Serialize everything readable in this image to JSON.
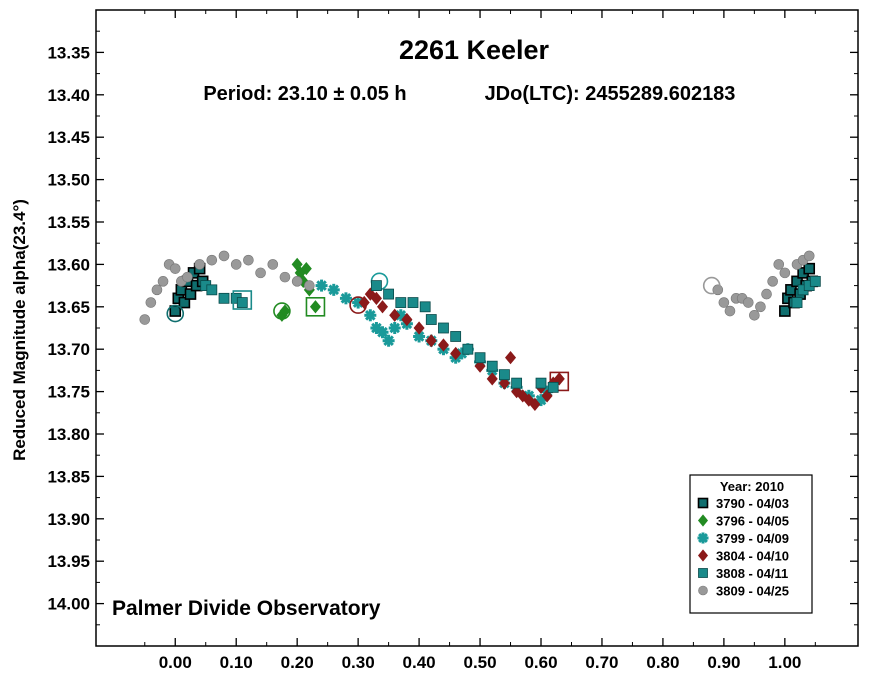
{
  "chart_data": {
    "type": "scatter",
    "title": "2261 Keeler",
    "subtitle_period": "Period: 23.10 ± 0.05 h",
    "subtitle_epoch": "JDo(LTC): 2455289.602183",
    "xlabel": "",
    "ylabel": "Reduced Magnitude alpha(23.4°)",
    "xlim": [
      -0.13,
      1.12
    ],
    "ylim": [
      13.3,
      14.05
    ],
    "y_inverted": true,
    "x_ticks": [
      "0.00",
      "0.10",
      "0.20",
      "0.30",
      "0.40",
      "0.50",
      "0.60",
      "0.70",
      "0.80",
      "0.90",
      "1.00"
    ],
    "y_ticks": [
      "13.35",
      "13.40",
      "13.45",
      "13.50",
      "13.55",
      "13.60",
      "13.65",
      "13.70",
      "13.75",
      "13.80",
      "13.85",
      "13.90",
      "13.95",
      "14.00"
    ],
    "grid": false,
    "legend_position": "bottom-right",
    "legend_title": "Year: 2010",
    "watermark": "Palmer Divide Observatory",
    "series": [
      {
        "name": "3790 - 04/03",
        "marker": "square-outline",
        "color": "#0f6e6e",
        "points": [
          [
            0.0,
            13.655
          ],
          [
            0.005,
            13.64
          ],
          [
            0.01,
            13.63
          ],
          [
            0.015,
            13.645
          ],
          [
            0.02,
            13.62
          ],
          [
            0.025,
            13.635
          ],
          [
            0.03,
            13.61
          ],
          [
            0.035,
            13.625
          ],
          [
            0.04,
            13.605
          ],
          [
            0.045,
            13.62
          ],
          [
            1.0,
            13.655
          ],
          [
            1.005,
            13.64
          ],
          [
            1.01,
            13.63
          ],
          [
            1.015,
            13.645
          ],
          [
            1.02,
            13.62
          ],
          [
            1.025,
            13.635
          ],
          [
            1.03,
            13.61
          ],
          [
            1.035,
            13.625
          ],
          [
            1.04,
            13.605
          ],
          [
            1.045,
            13.62
          ]
        ],
        "open_circle": [
          0.0,
          13.658
        ],
        "open_square": null
      },
      {
        "name": "3796 - 04/05",
        "marker": "diamond",
        "color": "#228b22",
        "points": [
          [
            0.175,
            13.66
          ],
          [
            0.18,
            13.655
          ],
          [
            0.2,
            13.6
          ],
          [
            0.205,
            13.61
          ],
          [
            0.21,
            13.62
          ],
          [
            0.215,
            13.605
          ],
          [
            0.22,
            13.63
          ],
          [
            0.23,
            13.65
          ]
        ],
        "open_circle": [
          0.175,
          13.655
        ],
        "open_square": [
          0.23,
          13.65
        ]
      },
      {
        "name": "3799 - 04/09",
        "marker": "asterisk",
        "color": "#1a9a9a",
        "points": [
          [
            0.24,
            13.625
          ],
          [
            0.26,
            13.63
          ],
          [
            0.28,
            13.64
          ],
          [
            0.3,
            13.645
          ],
          [
            0.32,
            13.66
          ],
          [
            0.33,
            13.675
          ],
          [
            0.34,
            13.68
          ],
          [
            0.35,
            13.69
          ],
          [
            0.36,
            13.675
          ],
          [
            0.37,
            13.66
          ],
          [
            0.38,
            13.67
          ],
          [
            0.4,
            13.685
          ],
          [
            0.42,
            13.69
          ],
          [
            0.44,
            13.7
          ],
          [
            0.46,
            13.71
          ],
          [
            0.47,
            13.705
          ],
          [
            0.48,
            13.7
          ],
          [
            0.5,
            13.715
          ],
          [
            0.52,
            13.725
          ],
          [
            0.54,
            13.74
          ],
          [
            0.56,
            13.745
          ],
          [
            0.58,
            13.755
          ],
          [
            0.6,
            13.76
          ],
          [
            0.61,
            13.75
          ]
        ],
        "open_circle": [
          0.335,
          13.62
        ],
        "open_square": null
      },
      {
        "name": "3804 - 04/10",
        "marker": "diamond",
        "color": "#8b1a1a",
        "points": [
          [
            0.31,
            13.645
          ],
          [
            0.32,
            13.635
          ],
          [
            0.33,
            13.64
          ],
          [
            0.34,
            13.65
          ],
          [
            0.36,
            13.66
          ],
          [
            0.38,
            13.665
          ],
          [
            0.4,
            13.675
          ],
          [
            0.42,
            13.69
          ],
          [
            0.44,
            13.695
          ],
          [
            0.46,
            13.705
          ],
          [
            0.5,
            13.72
          ],
          [
            0.52,
            13.735
          ],
          [
            0.54,
            13.74
          ],
          [
            0.55,
            13.71
          ],
          [
            0.56,
            13.75
          ],
          [
            0.57,
            13.755
          ],
          [
            0.58,
            13.76
          ],
          [
            0.59,
            13.765
          ],
          [
            0.6,
            13.745
          ],
          [
            0.61,
            13.755
          ],
          [
            0.62,
            13.74
          ],
          [
            0.63,
            13.735
          ]
        ],
        "open_circle": [
          0.3,
          13.648
        ],
        "open_square": [
          0.63,
          13.738
        ]
      },
      {
        "name": "3808 - 04/11",
        "marker": "square",
        "color": "#1a8a8a",
        "points": [
          [
            0.05,
            13.625
          ],
          [
            0.06,
            13.63
          ],
          [
            0.08,
            13.64
          ],
          [
            0.1,
            13.64
          ],
          [
            0.11,
            13.645
          ],
          [
            0.33,
            13.625
          ],
          [
            0.35,
            13.635
          ],
          [
            0.37,
            13.645
          ],
          [
            0.39,
            13.645
          ],
          [
            0.41,
            13.65
          ],
          [
            0.42,
            13.665
          ],
          [
            0.44,
            13.675
          ],
          [
            0.46,
            13.685
          ],
          [
            0.48,
            13.7
          ],
          [
            0.5,
            13.71
          ],
          [
            0.52,
            13.72
          ],
          [
            0.54,
            13.73
          ],
          [
            0.56,
            13.74
          ],
          [
            0.6,
            13.74
          ],
          [
            0.62,
            13.745
          ],
          [
            1.02,
            13.645
          ],
          [
            1.03,
            13.63
          ],
          [
            1.04,
            13.625
          ],
          [
            1.05,
            13.62
          ]
        ],
        "open_circle": null,
        "open_square": [
          0.11,
          13.642
        ]
      },
      {
        "name": "3809 - 04/25",
        "marker": "circle",
        "color": "#999999",
        "points": [
          [
            -0.05,
            13.665
          ],
          [
            -0.04,
            13.645
          ],
          [
            -0.03,
            13.63
          ],
          [
            -0.02,
            13.62
          ],
          [
            -0.01,
            13.6
          ],
          [
            0.0,
            13.605
          ],
          [
            0.01,
            13.62
          ],
          [
            0.02,
            13.615
          ],
          [
            0.04,
            13.6
          ],
          [
            0.06,
            13.595
          ],
          [
            0.08,
            13.59
          ],
          [
            0.1,
            13.6
          ],
          [
            0.12,
            13.595
          ],
          [
            0.14,
            13.61
          ],
          [
            0.16,
            13.6
          ],
          [
            0.18,
            13.615
          ],
          [
            0.2,
            13.62
          ],
          [
            0.22,
            13.625
          ],
          [
            0.89,
            13.63
          ],
          [
            0.9,
            13.645
          ],
          [
            0.91,
            13.655
          ],
          [
            0.92,
            13.64
          ],
          [
            0.93,
            13.64
          ],
          [
            0.94,
            13.645
          ],
          [
            0.95,
            13.66
          ],
          [
            0.96,
            13.65
          ],
          [
            0.97,
            13.635
          ],
          [
            0.98,
            13.62
          ],
          [
            0.99,
            13.6
          ],
          [
            1.0,
            13.61
          ],
          [
            1.02,
            13.6
          ],
          [
            1.03,
            13.595
          ],
          [
            1.04,
            13.59
          ]
        ],
        "open_circle": [
          0.88,
          13.625
        ],
        "open_square": null
      }
    ]
  }
}
